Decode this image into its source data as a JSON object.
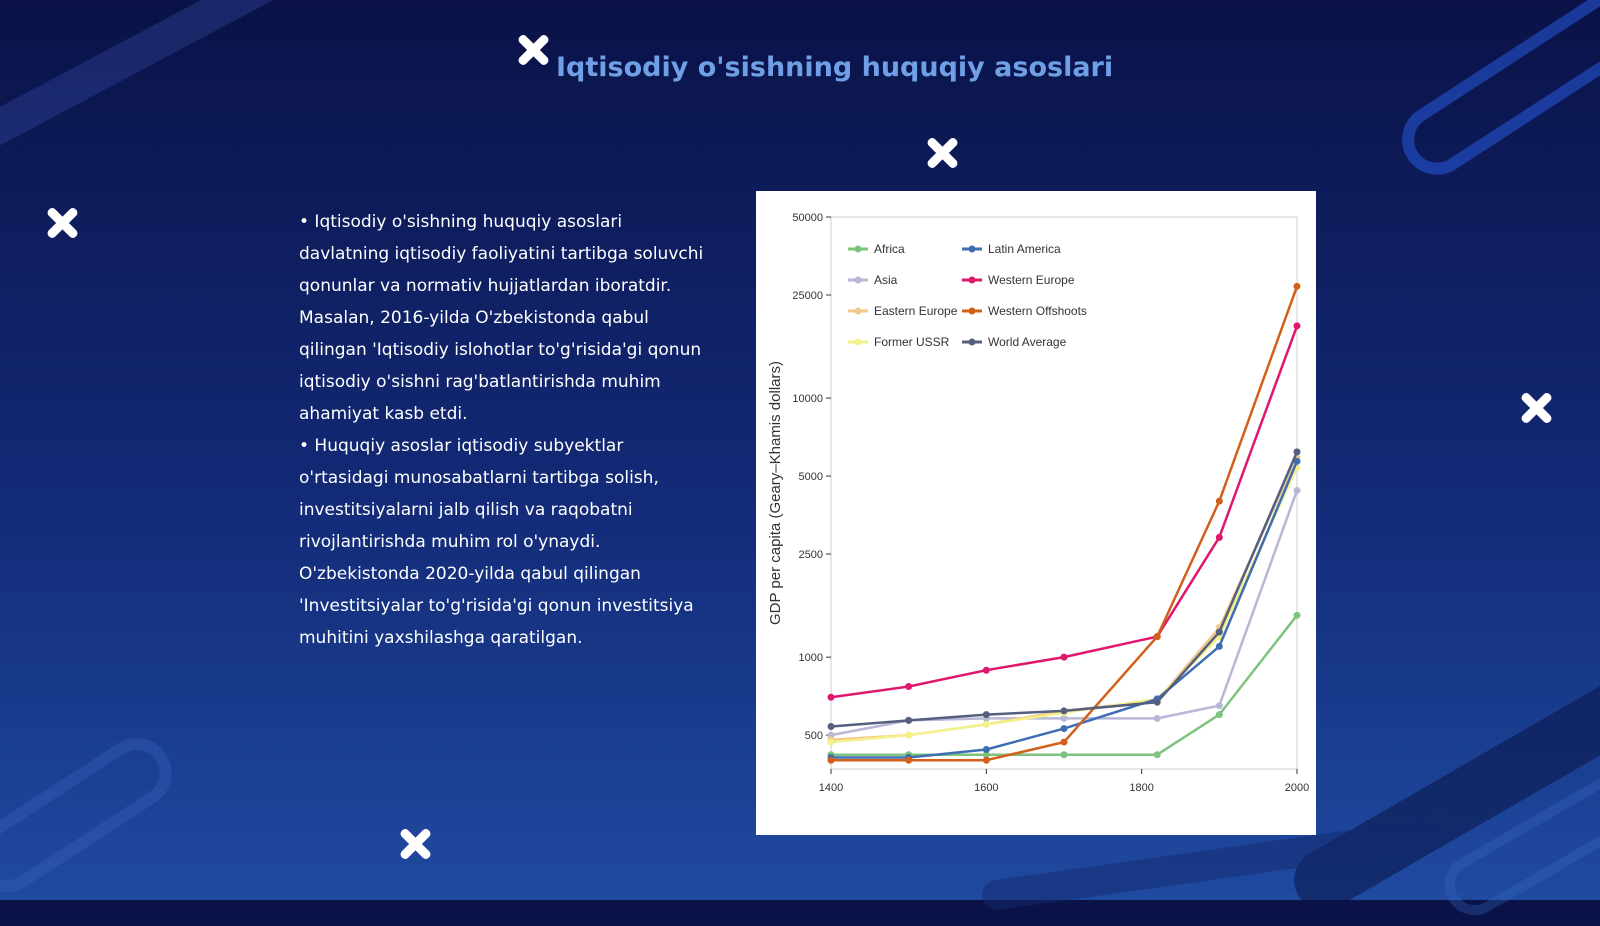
{
  "slide": {
    "title": "Iqtisodiy o'sishning huquqiy asoslari",
    "paragraphs": [
      "• Iqtisodiy o'sishning huquqiy asoslari davlatning iqtisodiy faoliyatini tartibga soluvchi qonunlar va normativ hujjatlardan iboratdir. Masalan, 2016-yilda O'zbekistonda qabul qilingan 'Iqtisodiy islohotlar to'g'risida'gi qonun iqtisodiy o'sishni rag'batlantirishda muhim ahamiyat kasb etdi.",
      "• Huquqiy asoslar iqtisodiy subyektlar o'rtasidagi munosabatlarni tartibga solish, investitsiyalarni jalb qilish va raqobatni rivojlantirishda muhim rol o'ynaydi. O'zbekistonda 2020-yilda qabul qilingan 'Investitsiyalar to'g'risida'gi qonun investitsiya muhitini yaxshilashga qaratilgan."
    ],
    "decor_icons": [
      "close-icon",
      "close-icon",
      "close-icon",
      "close-icon",
      "close-icon"
    ],
    "colors": {
      "background": "#0f1f5f",
      "title": "#6fa0e6",
      "text": "#ffffff"
    }
  },
  "chart_data": {
    "type": "line",
    "ylabel": "GDP per capita (Geary–Khamis dollars)",
    "xlabel": "",
    "y_scale": "log",
    "ylim": [
      370,
      50000
    ],
    "xlim": [
      1400,
      2000
    ],
    "x_ticks": [
      "1400",
      "1600",
      "1800",
      "2000"
    ],
    "y_ticks": [
      "50000",
      "25000",
      "10000",
      "5000",
      "2500",
      "1000",
      "500"
    ],
    "y_tick_values": [
      50000,
      25000,
      10000,
      5000,
      2500,
      1000,
      500
    ],
    "legend_position": "top-left",
    "x": [
      1400,
      1500,
      1600,
      1700,
      1820,
      1900,
      2000
    ],
    "series": [
      {
        "name": "Africa",
        "color": "#7dc27d",
        "values": [
          420,
          420,
          420,
          420,
          420,
          600,
          1450
        ]
      },
      {
        "name": "Asia",
        "color": "#b7b7d6",
        "values": [
          500,
          570,
          580,
          580,
          580,
          650,
          4400
        ]
      },
      {
        "name": "Eastern Europe",
        "color": "#f2c98a",
        "values": [
          480,
          500,
          550,
          620,
          680,
          1300,
          5900
        ]
      },
      {
        "name": "Former USSR",
        "color": "#f4f08a",
        "values": [
          470,
          500,
          550,
          610,
          690,
          1200,
          5400
        ]
      },
      {
        "name": "Latin America",
        "color": "#3f6db3",
        "values": [
          410,
          410,
          440,
          530,
          690,
          1100,
          5700
        ]
      },
      {
        "name": "Western Europe",
        "color": "#e0176e",
        "values": [
          700,
          770,
          890,
          1000,
          1200,
          2900,
          19000
        ]
      },
      {
        "name": "Western Offshoots",
        "color": "#d2601a",
        "values": [
          400,
          400,
          400,
          470,
          1200,
          4000,
          27000
        ]
      },
      {
        "name": "World Average",
        "color": "#556080",
        "values": [
          540,
          570,
          600,
          620,
          670,
          1250,
          6200
        ]
      }
    ]
  }
}
